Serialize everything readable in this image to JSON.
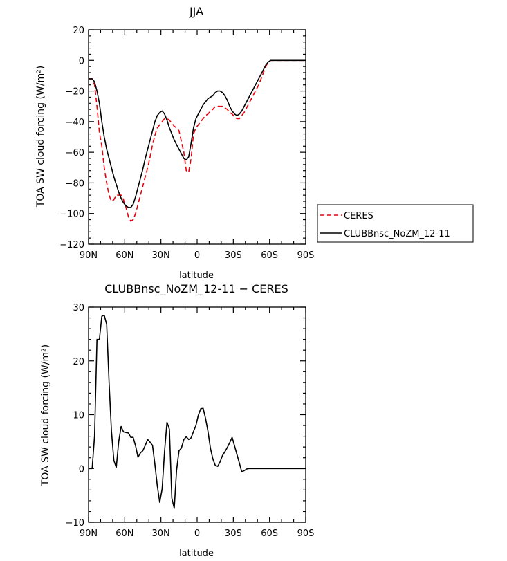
{
  "chart_data": [
    {
      "type": "line",
      "title": "JJA",
      "xlabel": "latitude",
      "ylabel": "TOA SW cloud forcing (W/m²)",
      "xlim": [
        90,
        -90
      ],
      "ylim": [
        -120,
        20
      ],
      "xticks": [
        90,
        60,
        30,
        0,
        -30,
        -60,
        -90
      ],
      "xtick_labels": [
        "90N",
        "60N",
        "30N",
        "0",
        "30S",
        "60S",
        "90S"
      ],
      "yticks": [
        -120,
        -100,
        -80,
        -60,
        -40,
        -20,
        0,
        20
      ],
      "ytick_labels": [
        "−120",
        "−100",
        "−80",
        "−60",
        "−40",
        "−20",
        "0",
        "20"
      ],
      "legend_position": "right",
      "series": [
        {
          "name": "CERES",
          "color": "#e8000b",
          "dash": "dashed",
          "x": [
            90,
            87,
            85,
            83,
            81,
            79,
            77,
            75,
            73,
            71,
            69,
            67,
            65,
            63,
            61,
            59,
            57,
            55,
            53,
            51,
            49,
            47,
            45,
            43,
            41,
            39,
            37,
            35,
            33,
            31,
            29,
            27,
            25,
            23,
            21,
            19,
            17,
            15,
            13,
            11,
            9,
            7,
            5,
            3,
            1,
            -1,
            -3,
            -5,
            -7,
            -9,
            -11,
            -13,
            -15,
            -17,
            -19,
            -21,
            -23,
            -25,
            -27,
            -29,
            -31,
            -33,
            -35,
            -37,
            -39,
            -41,
            -43,
            -45,
            -47,
            -49,
            -51,
            -53,
            -55,
            -57,
            -59,
            -61,
            -63,
            -65,
            -67,
            -69,
            -71,
            -73,
            -75,
            -77,
            -80,
            -85,
            -90
          ],
          "y": [
            -12,
            -12,
            -16,
            -30,
            -47,
            -56,
            -70,
            -80,
            -88,
            -92,
            -91,
            -88,
            -88,
            -88,
            -91,
            -96,
            -102,
            -105,
            -104,
            -100,
            -94,
            -88,
            -82,
            -76,
            -70,
            -63,
            -55,
            -49,
            -44,
            -42,
            -40,
            -38,
            -38,
            -39,
            -41,
            -43,
            -44,
            -46,
            -53,
            -60,
            -72,
            -73,
            -64,
            -48,
            -44,
            -42,
            -40,
            -38,
            -36,
            -35,
            -33,
            -32,
            -30,
            -30,
            -30,
            -30,
            -31,
            -32,
            -34,
            -35,
            -37,
            -38,
            -38,
            -36,
            -34,
            -31,
            -28,
            -25,
            -22,
            -19,
            -16,
            -12,
            -8,
            -4,
            -1,
            0,
            0,
            0,
            0,
            0,
            0,
            0,
            0,
            0,
            0,
            0,
            0
          ]
        },
        {
          "name": "CLUBBnsc_NoZM_12-11",
          "color": "#000000",
          "dash": "solid",
          "x": [
            90,
            87,
            85,
            83,
            81,
            79,
            77,
            75,
            73,
            71,
            69,
            67,
            65,
            63,
            61,
            59,
            57,
            55,
            53,
            51,
            49,
            47,
            45,
            43,
            41,
            39,
            37,
            35,
            33,
            31,
            29,
            27,
            25,
            23,
            21,
            19,
            17,
            15,
            13,
            11,
            9,
            7,
            5,
            3,
            1,
            -1,
            -3,
            -5,
            -7,
            -9,
            -11,
            -13,
            -15,
            -17,
            -19,
            -21,
            -23,
            -25,
            -27,
            -29,
            -31,
            -33,
            -35,
            -37,
            -39,
            -41,
            -43,
            -45,
            -47,
            -49,
            -51,
            -53,
            -55,
            -57,
            -59,
            -61,
            -63,
            -65,
            -67,
            -69,
            -71,
            -73,
            -75,
            -77,
            -80,
            -85,
            -90
          ],
          "y": [
            -12,
            -12,
            -14,
            -20,
            -28,
            -40,
            -50,
            -58,
            -64,
            -70,
            -76,
            -81,
            -86,
            -90,
            -93,
            -95,
            -96,
            -96,
            -94,
            -89,
            -83,
            -77,
            -71,
            -64,
            -58,
            -52,
            -46,
            -40,
            -36,
            -34,
            -33,
            -35,
            -39,
            -44,
            -48,
            -52,
            -55,
            -58,
            -61,
            -64,
            -65,
            -63,
            -54,
            -44,
            -38,
            -35,
            -32,
            -29,
            -27,
            -25,
            -24,
            -23,
            -21,
            -20,
            -20,
            -21,
            -23,
            -26,
            -30,
            -33,
            -35,
            -36,
            -35,
            -33,
            -30,
            -27,
            -24,
            -21,
            -18,
            -15,
            -12,
            -9,
            -6,
            -3,
            -1,
            0,
            0,
            0,
            0,
            0,
            0,
            0,
            0,
            0,
            0,
            0,
            0
          ]
        }
      ]
    },
    {
      "type": "line",
      "title": "CLUBBnsc_NoZM_12-11 − CERES",
      "xlabel": "latitude",
      "ylabel": "TOA SW cloud forcing (W/m²)",
      "xlim": [
        90,
        -90
      ],
      "ylim": [
        -10,
        30
      ],
      "xticks": [
        90,
        60,
        30,
        0,
        -30,
        -60,
        -90
      ],
      "xtick_labels": [
        "90N",
        "60N",
        "30N",
        "0",
        "30S",
        "60S",
        "90S"
      ],
      "yticks": [
        -10,
        0,
        10,
        20,
        30
      ],
      "ytick_labels": [
        "−10",
        "0",
        "10",
        "20",
        "30"
      ],
      "series": [
        {
          "color": "#000000",
          "dash": "solid",
          "x": [
            90,
            87,
            85,
            83,
            81,
            79,
            77,
            75,
            73,
            71,
            69,
            67,
            65,
            63,
            61,
            59,
            57,
            55,
            53,
            51,
            49,
            47,
            45,
            43,
            41,
            39,
            37,
            35,
            33,
            31,
            29,
            27,
            25,
            23,
            21,
            19,
            17,
            15,
            13,
            11,
            9,
            7,
            5,
            3,
            1,
            -1,
            -3,
            -5,
            -7,
            -9,
            -11,
            -13,
            -15,
            -17,
            -19,
            -21,
            -23,
            -25,
            -27,
            -29,
            -31,
            -33,
            -35,
            -37,
            -39,
            -41,
            -43,
            -45,
            -47,
            -49,
            -51,
            -53,
            -55,
            -57,
            -59,
            -61,
            -63,
            -65,
            -67,
            -69,
            -71,
            -73,
            -75,
            -77,
            -80,
            -85,
            -90
          ],
          "y": [
            0,
            0,
            6,
            24,
            24,
            28.3,
            28.5,
            26.8,
            16,
            7,
            1.5,
            0.2,
            5,
            7.8,
            6.8,
            6.7,
            6.6,
            5.8,
            5.8,
            4.2,
            2.1,
            2.9,
            3.3,
            4.3,
            5.4,
            4.9,
            4.3,
            0.8,
            -3.2,
            -6.3,
            -3.8,
            3.2,
            8.6,
            7.3,
            -5.5,
            -7.4,
            -0.3,
            3.3,
            3.8,
            5.4,
            5.9,
            5.4,
            5.7,
            6.9,
            8.0,
            9.9,
            11.1,
            11.2,
            9.3,
            6.9,
            3.8,
            1.8,
            0.6,
            0.4,
            1.2,
            2.4,
            3.1,
            3.9,
            4.8,
            5.8,
            4.2,
            2.6,
            1.0,
            -0.6,
            -0.4,
            -0.1,
            0,
            0,
            0,
            0,
            0,
            0,
            0,
            0,
            0,
            0,
            0,
            0,
            0,
            0,
            0,
            0,
            0,
            0,
            0,
            0,
            0
          ]
        }
      ]
    }
  ]
}
